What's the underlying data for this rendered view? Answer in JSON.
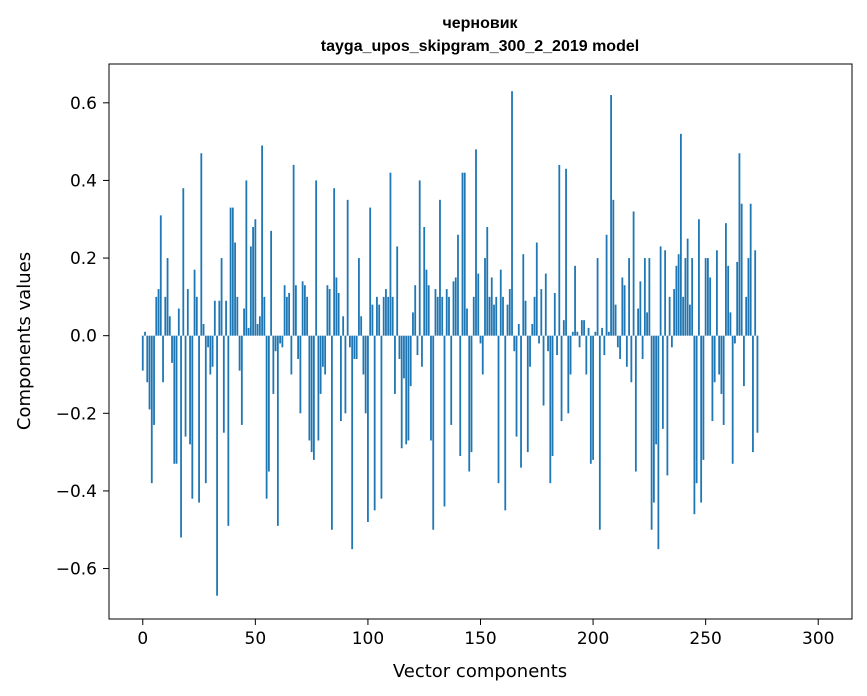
{
  "chart_data": {
    "type": "bar",
    "title": "черновик",
    "subtitle": "tayga_upos_skipgram_300_2_2019 model",
    "xlabel": "Vector components",
    "ylabel": "Components values",
    "xlim": [
      -15,
      315
    ],
    "ylim": [
      -0.73,
      0.7
    ],
    "x_ticks": [
      0,
      50,
      100,
      150,
      200,
      250,
      300
    ],
    "y_ticks": [
      -0.6,
      -0.4,
      -0.2,
      0.0,
      0.2,
      0.4,
      0.6
    ],
    "y_tick_labels": [
      "−0.6",
      "−0.4",
      "−0.2",
      "0.0",
      "0.2",
      "0.4",
      "0.6"
    ],
    "bar_color": "#1f77b4",
    "grid": false,
    "values": [
      -0.09,
      0.01,
      -0.12,
      -0.19,
      -0.38,
      -0.23,
      0.1,
      0.12,
      0.31,
      -0.12,
      0.1,
      0.2,
      0.05,
      -0.07,
      -0.33,
      -0.33,
      0.07,
      -0.52,
      0.38,
      -0.26,
      0.12,
      -0.28,
      -0.42,
      0.17,
      0.1,
      -0.43,
      0.47,
      0.03,
      -0.38,
      -0.03,
      -0.1,
      -0.08,
      0.09,
      -0.67,
      0.09,
      0.2,
      -0.25,
      0.09,
      -0.49,
      0.33,
      0.33,
      0.24,
      0.1,
      -0.09,
      -0.23,
      0.07,
      0.4,
      0.02,
      0.23,
      0.28,
      0.3,
      0.03,
      0.05,
      0.49,
      0.1,
      -0.42,
      -0.35,
      0.27,
      -0.15,
      -0.04,
      -0.49,
      -0.02,
      -0.03,
      0.13,
      0.1,
      0.11,
      -0.1,
      0.44,
      0.13,
      -0.06,
      -0.2,
      0.14,
      0.13,
      0.1,
      -0.27,
      -0.3,
      -0.32,
      0.4,
      -0.27,
      -0.15,
      -0.08,
      -0.1,
      0.13,
      0.12,
      -0.5,
      0.38,
      0.15,
      0.11,
      -0.22,
      0.05,
      -0.2,
      0.35,
      -0.03,
      -0.55,
      -0.06,
      -0.06,
      0.2,
      0.05,
      -0.1,
      -0.2,
      -0.48,
      0.33,
      0.08,
      -0.45,
      0.1,
      0.08,
      -0.42,
      0.1,
      0.12,
      0.1,
      0.42,
      0.1,
      -0.15,
      0.23,
      -0.06,
      -0.29,
      -0.11,
      -0.28,
      -0.27,
      -0.13,
      0.06,
      0.13,
      -0.05,
      0.4,
      -0.08,
      0.28,
      0.17,
      0.13,
      -0.27,
      -0.5,
      0.12,
      0.1,
      0.35,
      0.1,
      -0.44,
      0.12,
      0.1,
      -0.23,
      0.14,
      0.15,
      0.26,
      -0.31,
      0.42,
      0.42,
      0.07,
      -0.35,
      -0.3,
      0.1,
      0.48,
      0.16,
      -0.02,
      -0.1,
      0.2,
      0.28,
      0.1,
      0.15,
      0.08,
      0.1,
      -0.38,
      0.17,
      0.1,
      -0.45,
      0.08,
      0.12,
      0.63,
      -0.04,
      -0.26,
      0.03,
      -0.34,
      0.21,
      0.09,
      -0.3,
      -0.08,
      0.03,
      0.1,
      0.24,
      -0.02,
      0.12,
      -0.18,
      0.16,
      -0.04,
      -0.38,
      -0.31,
      0.11,
      -0.05,
      0.44,
      -0.22,
      0.04,
      0.43,
      -0.2,
      -0.1,
      0.01,
      0.18,
      0.01,
      -0.03,
      0.04,
      0.04,
      -0.1,
      0.02,
      -0.33,
      -0.32,
      0.01,
      0.2,
      -0.5,
      0.02,
      -0.05,
      0.26,
      0.01,
      0.62,
      0.35,
      0.08,
      -0.03,
      -0.06,
      0.15,
      0.13,
      -0.08,
      0.2,
      -0.12,
      0.32,
      -0.35,
      0.07,
      0.14,
      -0.06,
      0.2,
      0.06,
      0.2,
      -0.5,
      -0.43,
      -0.28,
      -0.55,
      0.23,
      -0.24,
      0.22,
      -0.36,
      0.1,
      -0.03,
      0.12,
      0.18,
      0.21,
      0.52,
      0.1,
      0.2,
      0.25,
      0.08,
      0.2,
      -0.46,
      -0.38,
      0.3,
      -0.43,
      -0.32,
      0.2,
      0.2,
      0.15,
      -0.22,
      -0.12,
      0.22,
      -0.1,
      -0.15,
      -0.23,
      0.29,
      0.18,
      0.06,
      -0.33,
      -0.02,
      0.19,
      0.47,
      0.34,
      -0.13,
      0.1,
      0.2,
      0.34,
      -0.3,
      0.22,
      -0.25
    ]
  }
}
